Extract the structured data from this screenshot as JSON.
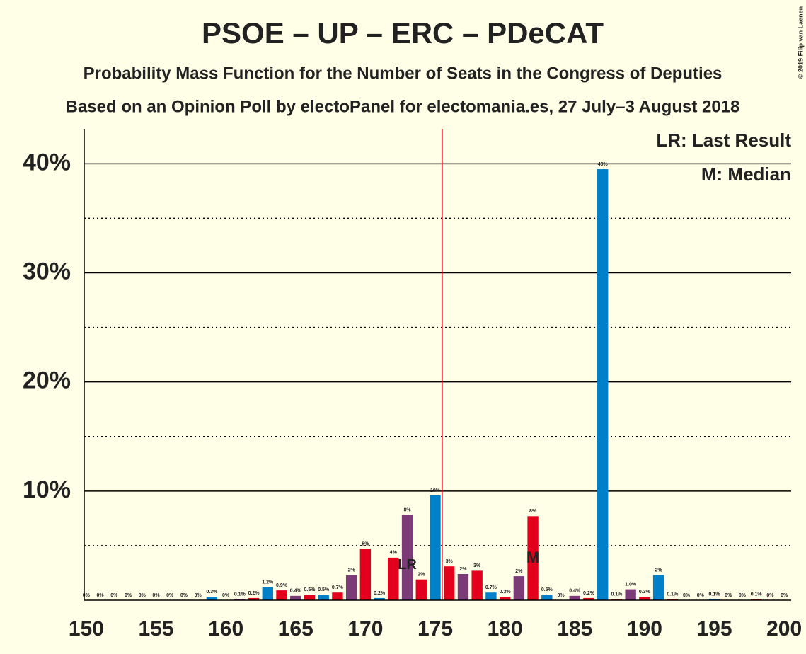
{
  "chart_data": {
    "type": "bar",
    "title": "PSOE – UP – ERC – PDeCAT",
    "subtitle": "Probability Mass Function for the Number of Seats in the Congress of Deputies",
    "subtitle2": "Based on an Opinion Poll by electoPanel for electomania.es, 27 July–3 August 2018",
    "legend_lr": "LR: Last Result",
    "legend_median": "M: Median",
    "copyright": "© 2019 Filip van Laenen",
    "x": [
      150,
      151,
      152,
      153,
      154,
      155,
      156,
      157,
      158,
      159,
      160,
      161,
      162,
      163,
      164,
      165,
      166,
      167,
      168,
      169,
      170,
      171,
      172,
      173,
      174,
      175,
      176,
      177,
      178,
      179,
      180,
      181,
      182,
      183,
      184,
      185,
      186,
      187,
      188,
      189,
      190,
      191,
      192,
      193,
      194,
      195,
      196,
      197,
      198,
      199,
      200
    ],
    "values": [
      0,
      0,
      0,
      0,
      0,
      0,
      0,
      0,
      0,
      0.3,
      0,
      0.1,
      0.2,
      1.2,
      0.9,
      0.4,
      0.5,
      0.5,
      0.7,
      2.3,
      4.7,
      0.2,
      3.9,
      7.8,
      1.9,
      9.6,
      3.1,
      2.4,
      2.7,
      0.7,
      0.3,
      2.2,
      7.7,
      0.5,
      0,
      0.4,
      0.2,
      39.5,
      0.1,
      1.0,
      0.3,
      2.3,
      0.1,
      0,
      0,
      0.1,
      0,
      0,
      0.1,
      0,
      0
    ],
    "value_labels": [
      "0%",
      "0%",
      "0%",
      "0%",
      "0%",
      "0%",
      "0%",
      "0%",
      "0%",
      "0.3%",
      "0%",
      "0.1%",
      "0.2%",
      "1.2%",
      "0.9%",
      "0.4%",
      "0.5%",
      "0.5%",
      "0.7%",
      "2%",
      "5%",
      "0.2%",
      "4%",
      "8%",
      "2%",
      "10%",
      "3%",
      "2%",
      "3%",
      "0.7%",
      "0.3%",
      "2%",
      "8%",
      "0.5%",
      "0%",
      "0.4%",
      "0.2%",
      "40%",
      "0.1%",
      "1.0%",
      "0.3%",
      "2%",
      "0.1%",
      "0%",
      "0%",
      "0.1%",
      "0%",
      "0%",
      "0.1%",
      "0%",
      "0%"
    ],
    "colors": [
      "#0080c8",
      "#e3001c",
      "#7b3b77",
      "#e3001c",
      "#0080c8",
      "#e3001c",
      "#7b3b77",
      "#e3001c",
      "#0080c8",
      "#0080c8",
      "#e3001c",
      "#7b3b77",
      "#e3001c",
      "#0080c8",
      "#e3001c",
      "#7b3b77",
      "#e3001c",
      "#0080c8",
      "#e3001c",
      "#7b3b77",
      "#e3001c",
      "#0080c8",
      "#e3001c",
      "#7b3b77",
      "#e3001c",
      "#0080c8",
      "#e3001c",
      "#7b3b77",
      "#e3001c",
      "#0080c8",
      "#e3001c",
      "#7b3b77",
      "#e3001c",
      "#0080c8",
      "#e3001c",
      "#7b3b77",
      "#e3001c",
      "#0080c8",
      "#e3001c",
      "#7b3b77",
      "#e3001c",
      "#0080c8",
      "#e3001c",
      "#7b3b77",
      "#e3001c",
      "#0080c8",
      "#e3001c",
      "#7b3b77",
      "#e3001c",
      "#0080c8",
      "#e3001c"
    ],
    "last_result": {
      "x": 173,
      "label": "LR"
    },
    "median": {
      "x": 182,
      "label": "M"
    },
    "majority_line": 175.5,
    "xlim": [
      149.5,
      200.5
    ],
    "xticks": [
      150,
      155,
      160,
      165,
      170,
      175,
      180,
      185,
      190,
      195,
      200
    ],
    "ylim": [
      0,
      43.2
    ],
    "yticks": [
      {
        "value": 10,
        "label": "10%"
      },
      {
        "value": 20,
        "label": "20%"
      },
      {
        "value": 30,
        "label": "30%"
      },
      {
        "value": 40,
        "label": "40%"
      }
    ],
    "minor_yticks": [
      5,
      15,
      25,
      35
    ],
    "grid": true
  }
}
